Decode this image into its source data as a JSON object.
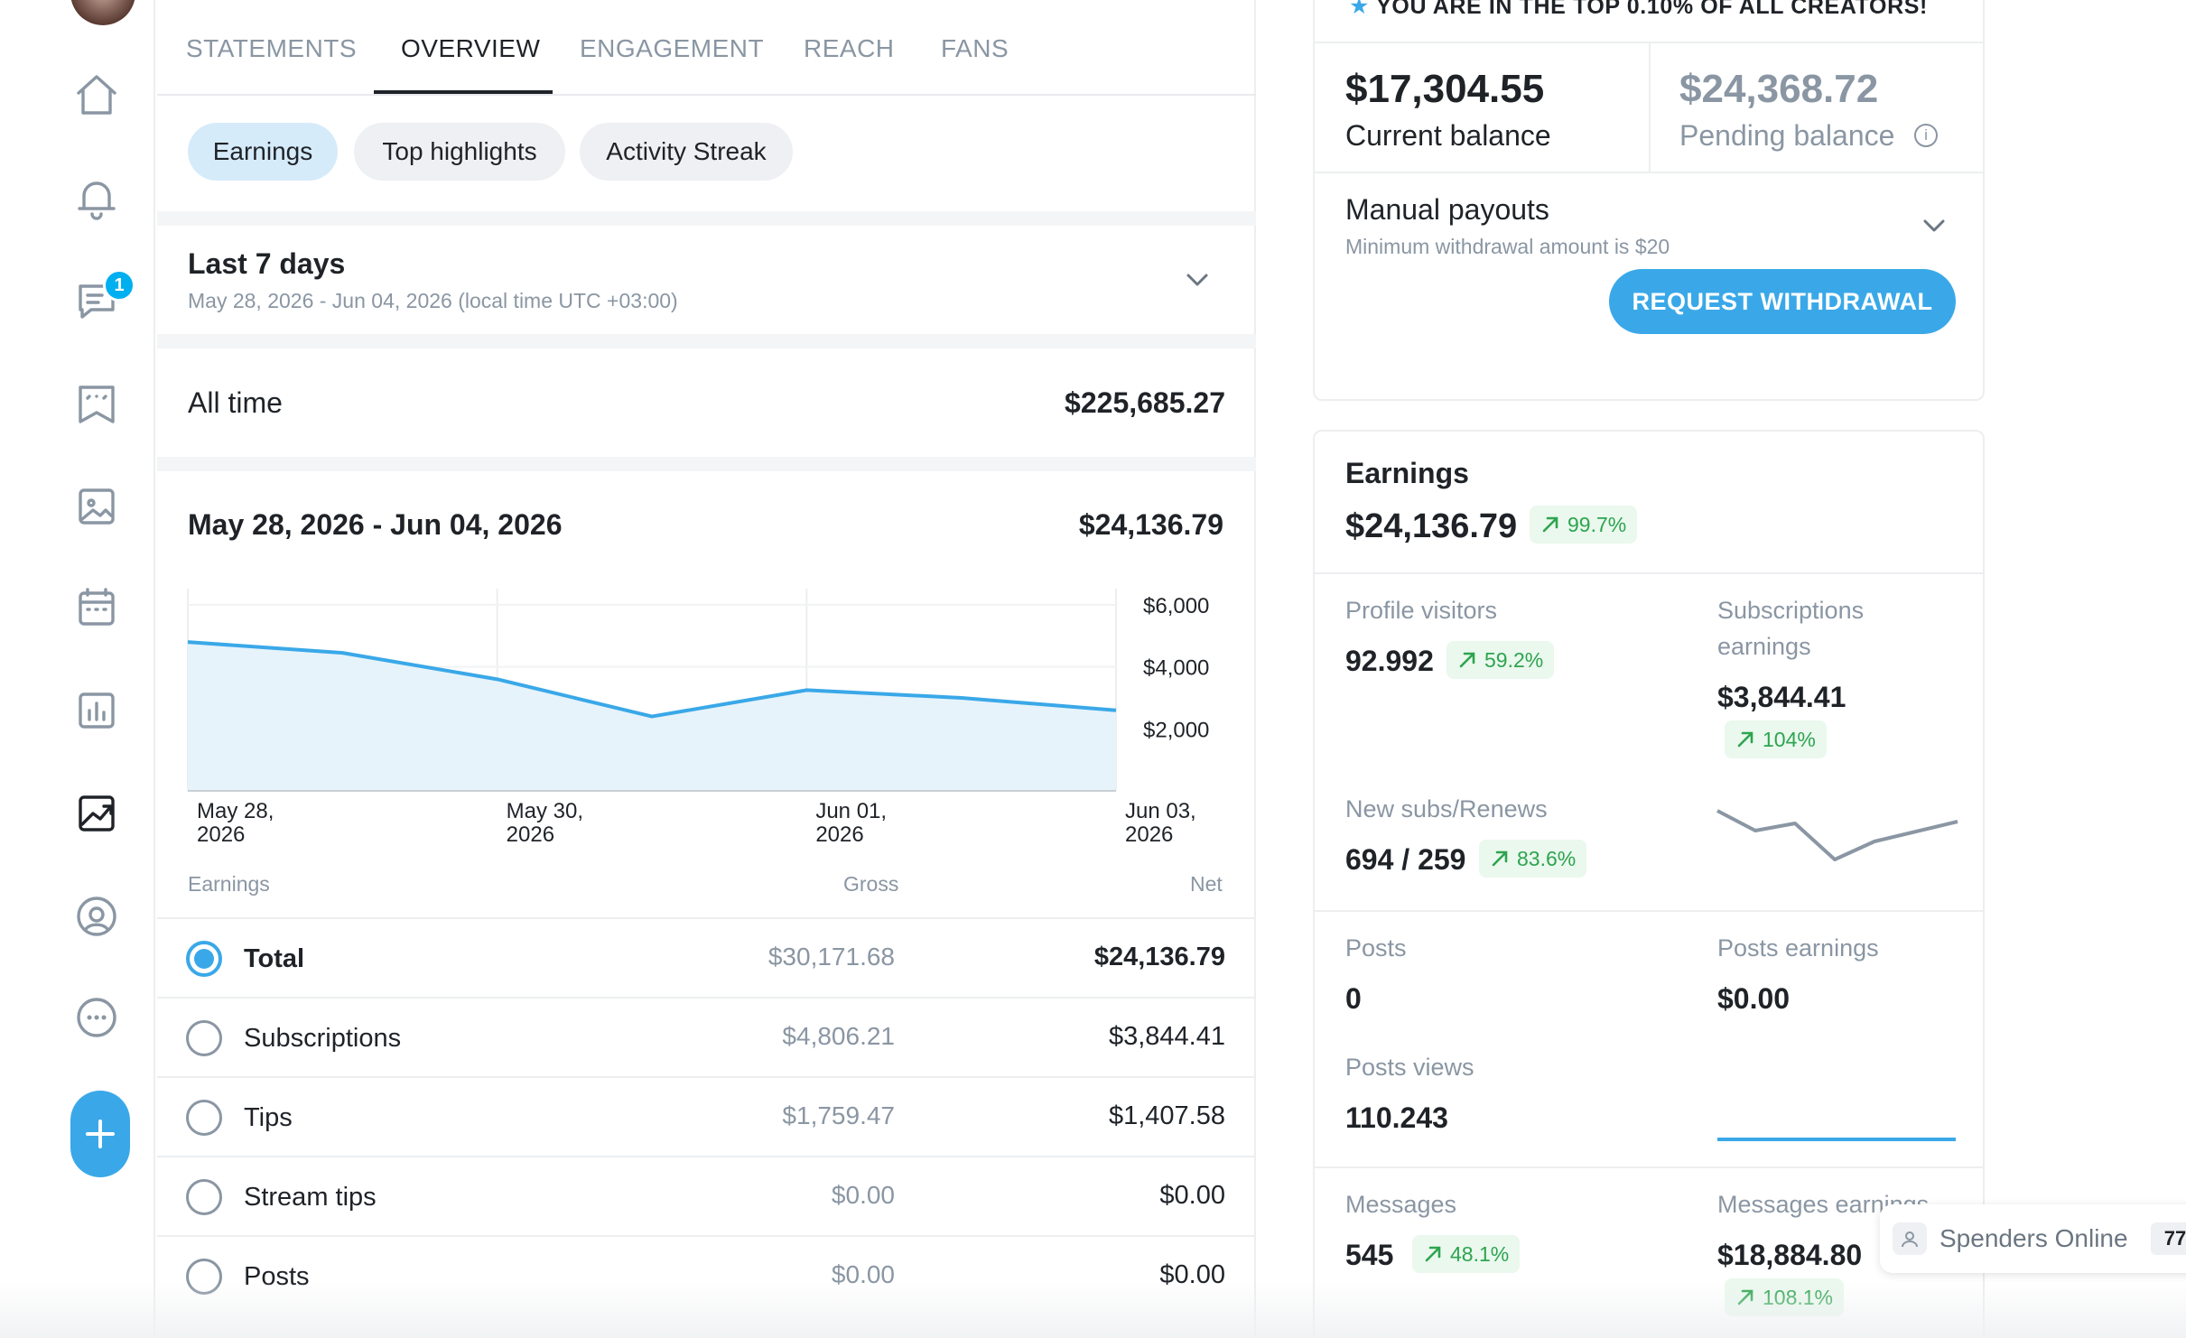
{
  "sidebar": {
    "items": [
      {
        "icon": "home-icon"
      },
      {
        "icon": "bell-icon"
      },
      {
        "icon": "messages-icon",
        "badge": "1"
      },
      {
        "icon": "collections-icon"
      },
      {
        "icon": "vault-icon"
      },
      {
        "icon": "calendar-icon"
      },
      {
        "icon": "statistics-icon"
      },
      {
        "icon": "analytics-icon",
        "active": true
      },
      {
        "icon": "profile-icon"
      },
      {
        "icon": "more-icon"
      }
    ],
    "fab_icon": "plus-icon"
  },
  "tabs": [
    "STATEMENTS",
    "OVERVIEW",
    "ENGAGEMENT",
    "REACH",
    "FANS"
  ],
  "active_tab": "OVERVIEW",
  "chips": [
    "Earnings",
    "Top highlights",
    "Activity Streak"
  ],
  "active_chip": "Earnings",
  "period": {
    "title": "Last 7 days",
    "subtitle": "May 28, 2026 - Jun 04, 2026 (local time UTC +03:00)"
  },
  "all_time": {
    "label": "All time",
    "value": "$225,685.27"
  },
  "range": {
    "label": "May 28, 2026 - Jun 04, 2026",
    "value": "$24,136.79"
  },
  "chart_data": {
    "type": "area",
    "x": [
      "May 28, 2026",
      "May 29, 2026",
      "May 30, 2026",
      "May 31, 2026",
      "Jun 01, 2026",
      "Jun 02, 2026",
      "Jun 03, 2026"
    ],
    "x_tick_labels": [
      [
        "May 28,",
        "2026"
      ],
      [
        "May 30,",
        "2026"
      ],
      [
        "Jun 01,",
        "2026"
      ],
      [
        "Jun 03,",
        "2026"
      ]
    ],
    "values": [
      4800,
      4450,
      3600,
      2400,
      3250,
      3000,
      2600
    ],
    "y_ticks": [
      "$6,000",
      "$4,000",
      "$2,000"
    ],
    "ylim": [
      0,
      6000
    ],
    "color": "#3aa8e8",
    "fill": "#e6f3fb",
    "grid": true
  },
  "table": {
    "headers": {
      "earnings": "Earnings",
      "gross": "Gross",
      "net": "Net"
    },
    "rows": [
      {
        "name": "Total",
        "gross": "$30,171.68",
        "net": "$24,136.79",
        "selected": true
      },
      {
        "name": "Subscriptions",
        "gross": "$4,806.21",
        "net": "$3,844.41",
        "selected": false
      },
      {
        "name": "Tips",
        "gross": "$1,759.47",
        "net": "$1,407.58",
        "selected": false
      },
      {
        "name": "Stream tips",
        "gross": "$0.00",
        "net": "$0.00",
        "selected": false
      },
      {
        "name": "Posts",
        "gross": "$0.00",
        "net": "$0.00",
        "selected": false
      }
    ]
  },
  "balance": {
    "top_banner": "YOU ARE IN THE TOP 0.10% OF ALL CREATORS!",
    "current": "$17,304.55",
    "current_label": "Current balance",
    "pending": "$24,368.72",
    "pending_label": "Pending balance",
    "payout_title": "Manual payouts",
    "payout_sub": "Minimum withdrawal amount is $20",
    "button": "REQUEST WITHDRAWAL"
  },
  "earnings_card": {
    "title": "Earnings",
    "total": "$24,136.79",
    "total_change": "99.7%",
    "metrics": {
      "profile_visitors": {
        "label": "Profile visitors",
        "value": "92.992",
        "change": "59.2%"
      },
      "subscriptions_earnings": {
        "label_1": "Subscriptions",
        "label_2": "earnings",
        "value": "$3,844.41",
        "change": "104%"
      },
      "new_subs": {
        "label": "New subs/Renews",
        "value": "694 / 259",
        "change": "83.6%"
      },
      "posts": {
        "label": "Posts",
        "value": "0"
      },
      "posts_earnings": {
        "label": "Posts earnings",
        "value": "$0.00"
      },
      "posts_views": {
        "label": "Posts views",
        "value": "110.243"
      },
      "messages": {
        "label": "Messages",
        "value": "545",
        "change": "48.1%"
      },
      "messages_earnings": {
        "label": "Messages earnings",
        "value": "$18,884.80",
        "change": "108.1%"
      }
    },
    "accent": "#2ea44f"
  },
  "spenders": {
    "label": "Spenders Online",
    "count": "77"
  }
}
